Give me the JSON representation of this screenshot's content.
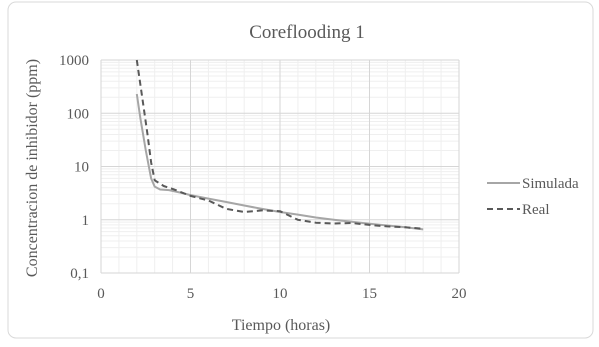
{
  "chart_data": {
    "type": "line",
    "title": "Coreflooding 1",
    "xlabel": "Tiempo (horas)",
    "ylabel": "Concentracion de inhibidor (ppm)",
    "xlim": [
      0,
      20
    ],
    "ylim": [
      0.1,
      1000
    ],
    "yscale": "log",
    "x_ticks": [
      "0",
      "5",
      "10",
      "15",
      "20"
    ],
    "y_ticks": [
      "0,1",
      "1",
      "10",
      "100",
      "1000"
    ],
    "legend_position": "right",
    "series": [
      {
        "name": "Simulada",
        "style": "solid",
        "color": "#A6A6A6",
        "points": [
          [
            2.0,
            230
          ],
          [
            2.2,
            80
          ],
          [
            2.5,
            20
          ],
          [
            2.8,
            6
          ],
          [
            3.0,
            4.2
          ],
          [
            3.3,
            3.7
          ],
          [
            3.8,
            3.6
          ],
          [
            4.5,
            3.2
          ],
          [
            5.0,
            2.9
          ],
          [
            6.0,
            2.5
          ],
          [
            7.0,
            2.15
          ],
          [
            8.0,
            1.85
          ],
          [
            9.0,
            1.6
          ],
          [
            10.0,
            1.4
          ],
          [
            11.0,
            1.25
          ],
          [
            12.0,
            1.1
          ],
          [
            13.0,
            1.0
          ],
          [
            14.0,
            0.92
          ],
          [
            15.0,
            0.84
          ],
          [
            16.0,
            0.78
          ],
          [
            17.0,
            0.72
          ],
          [
            18.0,
            0.66
          ]
        ]
      },
      {
        "name": "Real",
        "style": "dashed",
        "color": "#595959",
        "points": [
          [
            2.0,
            1000
          ],
          [
            2.3,
            200
          ],
          [
            2.6,
            40
          ],
          [
            2.8,
            12
          ],
          [
            3.0,
            5.5
          ],
          [
            3.5,
            4.3
          ],
          [
            4.0,
            3.8
          ],
          [
            5.0,
            2.8
          ],
          [
            6.0,
            2.3
          ],
          [
            7.0,
            1.6
          ],
          [
            8.0,
            1.4
          ],
          [
            9.0,
            1.5
          ],
          [
            10.0,
            1.45
          ],
          [
            11.0,
            1.0
          ],
          [
            12.0,
            0.88
          ],
          [
            13.0,
            0.85
          ],
          [
            14.0,
            0.87
          ],
          [
            15.0,
            0.8
          ],
          [
            16.0,
            0.75
          ],
          [
            17.0,
            0.72
          ],
          [
            18.0,
            0.68
          ]
        ]
      }
    ]
  }
}
